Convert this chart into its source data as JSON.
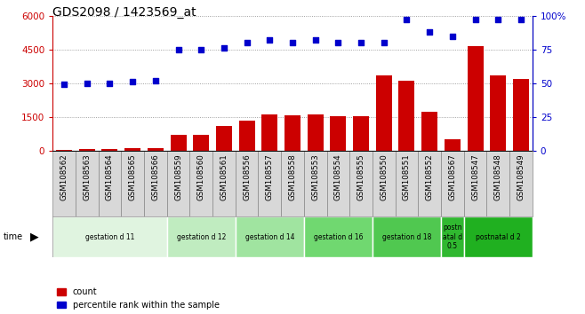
{
  "title": "GDS2098 / 1423569_at",
  "samples": [
    "GSM108562",
    "GSM108563",
    "GSM108564",
    "GSM108565",
    "GSM108566",
    "GSM108559",
    "GSM108560",
    "GSM108561",
    "GSM108556",
    "GSM108557",
    "GSM108558",
    "GSM108553",
    "GSM108554",
    "GSM108555",
    "GSM108550",
    "GSM108551",
    "GSM108552",
    "GSM108567",
    "GSM108547",
    "GSM108548",
    "GSM108549"
  ],
  "counts": [
    30,
    80,
    60,
    100,
    120,
    700,
    700,
    1100,
    1350,
    1600,
    1580,
    1600,
    1530,
    1530,
    3350,
    3100,
    1750,
    500,
    4650,
    3350,
    3200
  ],
  "percentiles": [
    49,
    50,
    50,
    51,
    52,
    75,
    75,
    76,
    80,
    82,
    80,
    82,
    80,
    80,
    80,
    97,
    88,
    85,
    97,
    97,
    97
  ],
  "groups": [
    {
      "label": "gestation d 11",
      "start": 0,
      "end": 4,
      "color": "#e0f4e0"
    },
    {
      "label": "gestation d 12",
      "start": 5,
      "end": 7,
      "color": "#c0ecc0"
    },
    {
      "label": "gestation d 14",
      "start": 8,
      "end": 10,
      "color": "#a0e4a0"
    },
    {
      "label": "gestation d 16",
      "start": 11,
      "end": 13,
      "color": "#70d870"
    },
    {
      "label": "gestation d 18",
      "start": 14,
      "end": 16,
      "color": "#50c850"
    },
    {
      "label": "postn\natal d\n0.5",
      "start": 17,
      "end": 17,
      "color": "#30b830"
    },
    {
      "label": "postnatal d 2",
      "start": 18,
      "end": 20,
      "color": "#20b020"
    }
  ],
  "bar_color": "#cc0000",
  "dot_color": "#0000cc",
  "ylim_left": [
    0,
    6000
  ],
  "ylim_right": [
    0,
    100
  ],
  "yticks_left": [
    0,
    1500,
    3000,
    4500,
    6000
  ],
  "yticks_right": [
    0,
    25,
    50,
    75,
    100
  ],
  "ylabel_left_color": "#cc0000",
  "ylabel_right_color": "#0000cc",
  "grid_color": "#888888",
  "background_color": "#ffffff",
  "title_fontsize": 10,
  "tick_fontsize": 7.5,
  "sample_box_color": "#d8d8d8",
  "sample_box_edgecolor": "#888888"
}
